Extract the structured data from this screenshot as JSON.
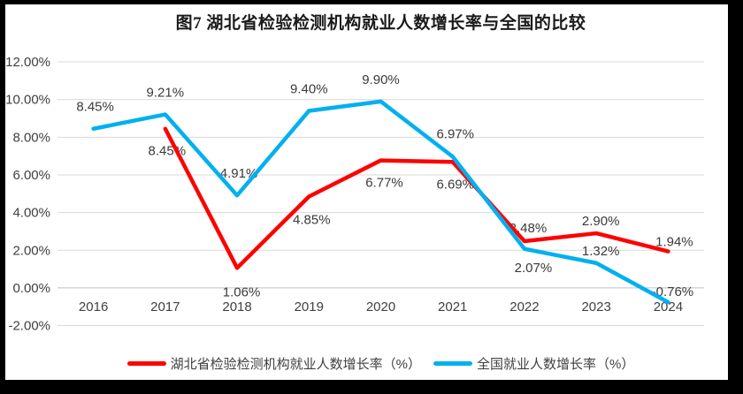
{
  "frame": {
    "border_color": "#000000",
    "background_color": "#ffffff"
  },
  "chart_data": {
    "type": "line",
    "title": "图7 湖北省检验检测机构就业人数增长率与全国的比较",
    "categories": [
      "2016",
      "2017",
      "2018",
      "2019",
      "2020",
      "2021",
      "2022",
      "2023",
      "2024"
    ],
    "series": [
      {
        "name": "湖北省检验检测机构就业人数增长率（%）",
        "color": "#FE0000",
        "values": [
          null,
          8.45,
          1.06,
          4.85,
          6.77,
          6.69,
          2.48,
          2.9,
          1.94
        ],
        "labels": [
          null,
          "8.45%",
          "1.06%",
          "4.85%",
          "6.77%",
          "6.69%",
          "2.48%",
          "2.90%",
          "1.94%"
        ]
      },
      {
        "name": "全国就业人数增长率（%）",
        "color": "#00B0F0",
        "values": [
          8.45,
          9.21,
          4.91,
          9.4,
          9.9,
          6.97,
          2.07,
          1.32,
          -0.76
        ],
        "labels": [
          "8.45%",
          "9.21%",
          "4.91%",
          "9.40%",
          "9.90%",
          "6.97%",
          "2.07%",
          "1.32%",
          "-0.76%"
        ]
      }
    ],
    "y_ticks": [
      "12.00%",
      "10.00%",
      "8.00%",
      "6.00%",
      "4.00%",
      "2.00%",
      "0.00%",
      "-2.00%"
    ],
    "y_tick_values": [
      12,
      10,
      8,
      6,
      4,
      2,
      0,
      -2
    ],
    "ylim": [
      -2,
      12
    ],
    "xlabel": "",
    "ylabel": "",
    "grid": true,
    "gridline_color": "#D9D9D9",
    "zero_line_color": "#BFBFBF",
    "legend_position": "bottom"
  }
}
